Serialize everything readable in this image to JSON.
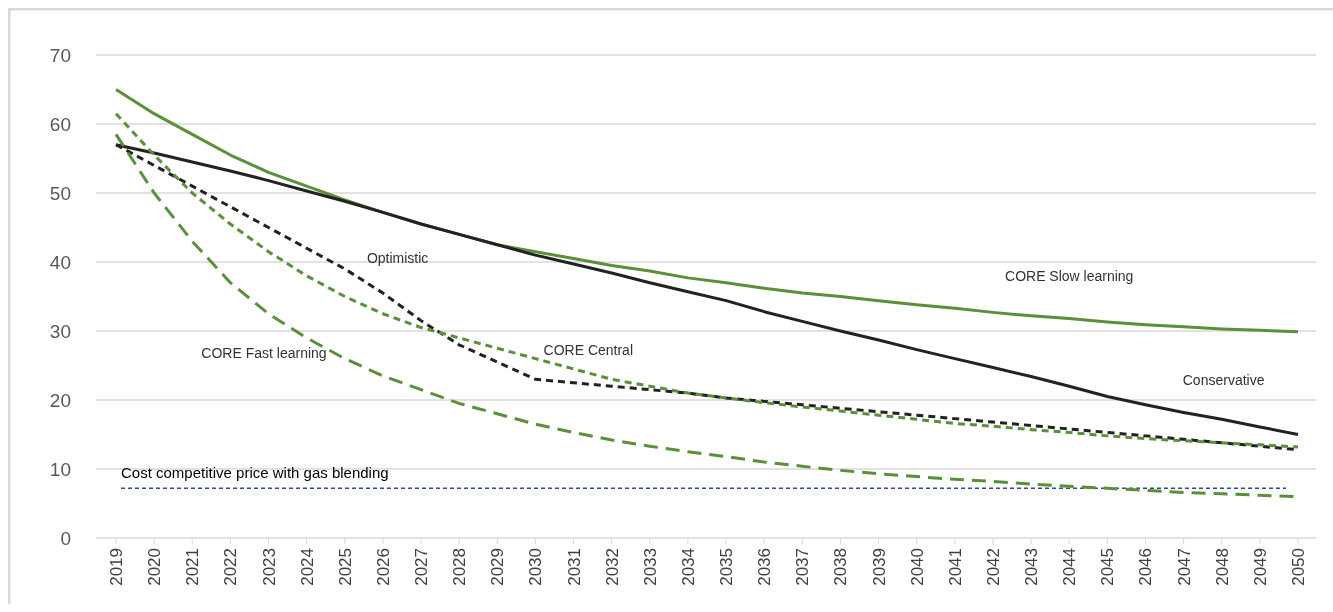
{
  "chart_data": {
    "type": "line",
    "categories": [
      "2019",
      "2020",
      "2021",
      "2022",
      "2023",
      "2024",
      "2025",
      "2026",
      "2027",
      "2028",
      "2029",
      "2030",
      "2031",
      "2032",
      "2033",
      "2034",
      "2035",
      "2036",
      "2037",
      "2038",
      "2039",
      "2040",
      "2041",
      "2042",
      "2043",
      "2044",
      "2045",
      "2046",
      "2047",
      "2048",
      "2049",
      "2050"
    ],
    "ylim": [
      0,
      70
    ],
    "yticks": [
      0,
      10,
      20,
      30,
      40,
      50,
      60,
      70
    ],
    "grid": "y",
    "marker": "none",
    "series": [
      {
        "name": "CORE Slow learning",
        "color": "#5b8f3a",
        "line_style": "solid",
        "values": [
          65,
          61.5,
          58.5,
          55.5,
          53,
          51,
          49,
          47.2,
          45.5,
          44,
          42.5,
          41.5,
          40.5,
          39.5,
          38.7,
          37.7,
          37,
          36.2,
          35.5,
          35,
          34.4,
          33.8,
          33.3,
          32.7,
          32.2,
          31.8,
          31.3,
          30.9,
          30.6,
          30.3,
          30.1,
          29.9
        ]
      },
      {
        "name": "Conservative",
        "color": "#222222",
        "line_style": "solid",
        "values": [
          57,
          55.8,
          54.5,
          53.2,
          51.8,
          50.3,
          48.8,
          47.2,
          45.5,
          44,
          42.5,
          41,
          39.7,
          38.4,
          37,
          35.7,
          34.4,
          32.8,
          31.4,
          30,
          28.7,
          27.3,
          26,
          24.7,
          23.4,
          22,
          20.5,
          19.3,
          18.2,
          17.2,
          16.1,
          15
        ]
      },
      {
        "name": "Optimistic",
        "color": "#222222",
        "line_style": "dashed",
        "values": [
          57,
          54,
          51,
          48,
          45,
          42,
          39,
          35.5,
          31.5,
          28,
          25.5,
          23,
          22.5,
          22,
          21.5,
          21,
          20.3,
          19.8,
          19.3,
          18.8,
          18.3,
          17.8,
          17.3,
          16.8,
          16.3,
          15.8,
          15.3,
          14.8,
          14.3,
          13.8,
          13.3,
          12.8
        ]
      },
      {
        "name": "CORE Central",
        "color": "#5b8f3a",
        "line_style": "dashed",
        "values": [
          61.5,
          55.5,
          50,
          45.5,
          41.5,
          38,
          35,
          32.5,
          30.5,
          29,
          27.5,
          26,
          24.5,
          23,
          22,
          21,
          20.3,
          19.6,
          19,
          18.4,
          17.8,
          17.2,
          16.6,
          16.2,
          15.7,
          15.3,
          14.8,
          14.4,
          14.1,
          13.8,
          13.5,
          13.2
        ]
      },
      {
        "name": "CORE Fast learning",
        "color": "#5b8f3a",
        "line_style": "dashed",
        "values": [
          58.5,
          50,
          43,
          37,
          32.5,
          29,
          26,
          23.5,
          21.5,
          19.5,
          18,
          16.5,
          15.3,
          14.2,
          13.3,
          12.5,
          11.8,
          11,
          10.4,
          9.8,
          9.3,
          8.9,
          8.5,
          8.2,
          7.8,
          7.5,
          7.2,
          6.9,
          6.6,
          6.4,
          6.2,
          6
        ]
      }
    ],
    "ref_lines": [
      {
        "axis": "y",
        "value": 7.2,
        "label": "Cost competitive price with gas blending",
        "color": "#2f4a9a",
        "line_style": "dashed"
      }
    ]
  }
}
